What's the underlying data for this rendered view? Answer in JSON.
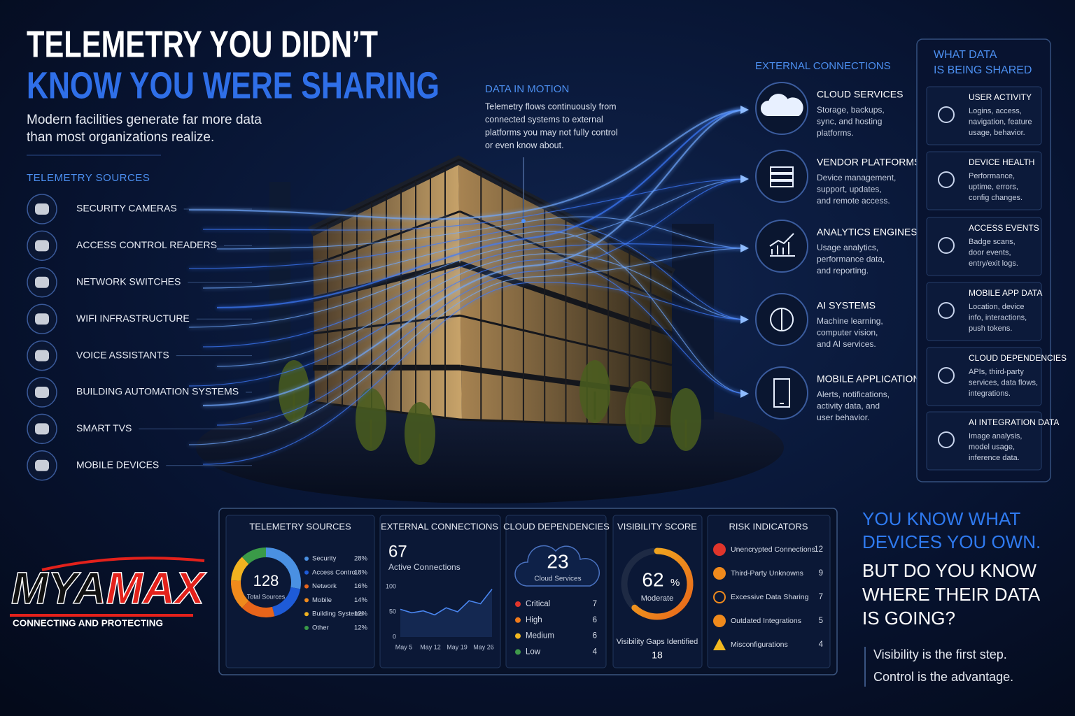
{
  "header": {
    "title_line1": "TELEMETRY YOU DIDN’T",
    "title_line2": "KNOW YOU WERE SHARING",
    "subtitle": [
      "Modern facilities generate far more data",
      "than most organizations realize."
    ]
  },
  "sources": {
    "heading": "TELEMETRY SOURCES",
    "items": [
      "SECURITY CAMERAS",
      "ACCESS CONTROL READERS",
      "NETWORK SWITCHES",
      "WIFI INFRASTRUCTURE",
      "VOICE ASSISTANTS",
      "BUILDING AUTOMATION SYSTEMS",
      "SMART TVS",
      "MOBILE DEVICES"
    ]
  },
  "data_in_motion": {
    "heading": "DATA IN MOTION",
    "lines": [
      "Telemetry flows continuously from",
      "connected systems to external",
      "platforms you may not fully control",
      "or even know about."
    ]
  },
  "external": {
    "heading": "EXTERNAL CONNECTIONS",
    "items": [
      {
        "title": "CLOUD SERVICES",
        "lines": [
          "Storage, backups,",
          "sync, and hosting",
          "platforms."
        ]
      },
      {
        "title": "VENDOR PLATFORMS",
        "lines": [
          "Device management,",
          "support, updates,",
          "and remote access."
        ]
      },
      {
        "title": "ANALYTICS ENGINES",
        "lines": [
          "Usage analytics,",
          "performance data,",
          "and reporting."
        ]
      },
      {
        "title": "AI SYSTEMS",
        "lines": [
          "Machine learning,",
          "computer vision,",
          "and AI services."
        ]
      },
      {
        "title": "MOBILE APPLICATIONS",
        "lines": [
          "Alerts, notifications,",
          "activity data, and",
          "user behavior."
        ]
      }
    ]
  },
  "shared": {
    "heading": [
      "WHAT DATA",
      "IS BEING SHARED"
    ],
    "items": [
      {
        "title": "USER ACTIVITY",
        "lines": [
          "Logins, access,",
          "navigation, feature",
          "usage, behavior."
        ]
      },
      {
        "title": "DEVICE HEALTH",
        "lines": [
          "Performance,",
          "uptime, errors,",
          "config changes."
        ]
      },
      {
        "title": "ACCESS EVENTS",
        "lines": [
          "Badge scans,",
          "door events,",
          "entry/exit logs."
        ]
      },
      {
        "title": "MOBILE APP DATA",
        "lines": [
          "Location, device",
          "info, interactions,",
          "push tokens."
        ]
      },
      {
        "title": "CLOUD DEPENDENCIES",
        "lines": [
          "APIs, third-party",
          "services, data flows,",
          "integrations."
        ]
      },
      {
        "title": "AI INTEGRATION DATA",
        "lines": [
          "Image analysis,",
          "model usage,",
          "inference data."
        ]
      }
    ]
  },
  "dashboard": {
    "sources": {
      "title": "TELEMETRY SOURCES",
      "type": "donut",
      "total": 128,
      "total_label": "Total Sources",
      "categories": [
        "Security",
        "Access Control",
        "Network",
        "Mobile",
        "Building Systems",
        "Other"
      ],
      "values": [
        28,
        18,
        16,
        14,
        12,
        12
      ],
      "value_labels": [
        "28%",
        "18%",
        "16%",
        "14%",
        "12%",
        "12%"
      ],
      "colors": [
        "#4a90e2",
        "#1e5bd8",
        "#e8641a",
        "#f08a1c",
        "#f2b320",
        "#3a9a48"
      ]
    },
    "connections": {
      "title": "EXTERNAL CONNECTIONS",
      "type": "line",
      "total": 67,
      "total_label": "Active Connections",
      "x_labels": [
        "May 5",
        "May 12",
        "May 19",
        "May 26"
      ],
      "values": [
        55,
        48,
        52,
        44,
        58,
        50,
        72,
        66,
        95
      ],
      "ylim": [
        0,
        100
      ],
      "yticks": [
        0,
        50,
        100
      ],
      "color": "#4a86f0"
    },
    "cloud": {
      "title": "CLOUD DEPENDENCIES",
      "total": 23,
      "total_label": "Cloud Services",
      "levels": [
        {
          "name": "Critical",
          "value": 7,
          "color": "#e0352b"
        },
        {
          "name": "High",
          "value": 6,
          "color": "#f07a1a"
        },
        {
          "name": "Medium",
          "value": 6,
          "color": "#f2b820"
        },
        {
          "name": "Low",
          "value": 4,
          "color": "#3f9a4a"
        }
      ]
    },
    "visibility": {
      "title": "VISIBILITY SCORE",
      "type": "gauge",
      "score": 62,
      "unit": "%",
      "rating": "Moderate",
      "gaps_label": "Visibility Gaps Identified",
      "gaps": 18
    },
    "risk": {
      "title": "RISK INDICATORS",
      "items": [
        {
          "name": "Unencrypted Connections",
          "value": 12
        },
        {
          "name": "Third-Party Unknowns",
          "value": 9
        },
        {
          "name": "Excessive Data Sharing",
          "value": 7
        },
        {
          "name": "Outdated Integrations",
          "value": 5
        },
        {
          "name": "Misconfigurations",
          "value": 4
        }
      ]
    }
  },
  "closing": {
    "lead": [
      "YOU KNOW WHAT",
      "DEVICES YOU OWN."
    ],
    "question": [
      "BUT DO YOU KNOW",
      "WHERE THEIR DATA",
      "IS GOING?"
    ],
    "tagline": [
      "Visibility is the first step.",
      "Control is the advantage."
    ]
  },
  "logo": {
    "name": "MYAMAX",
    "tagline": "CONNECTING AND PROTECTING"
  }
}
